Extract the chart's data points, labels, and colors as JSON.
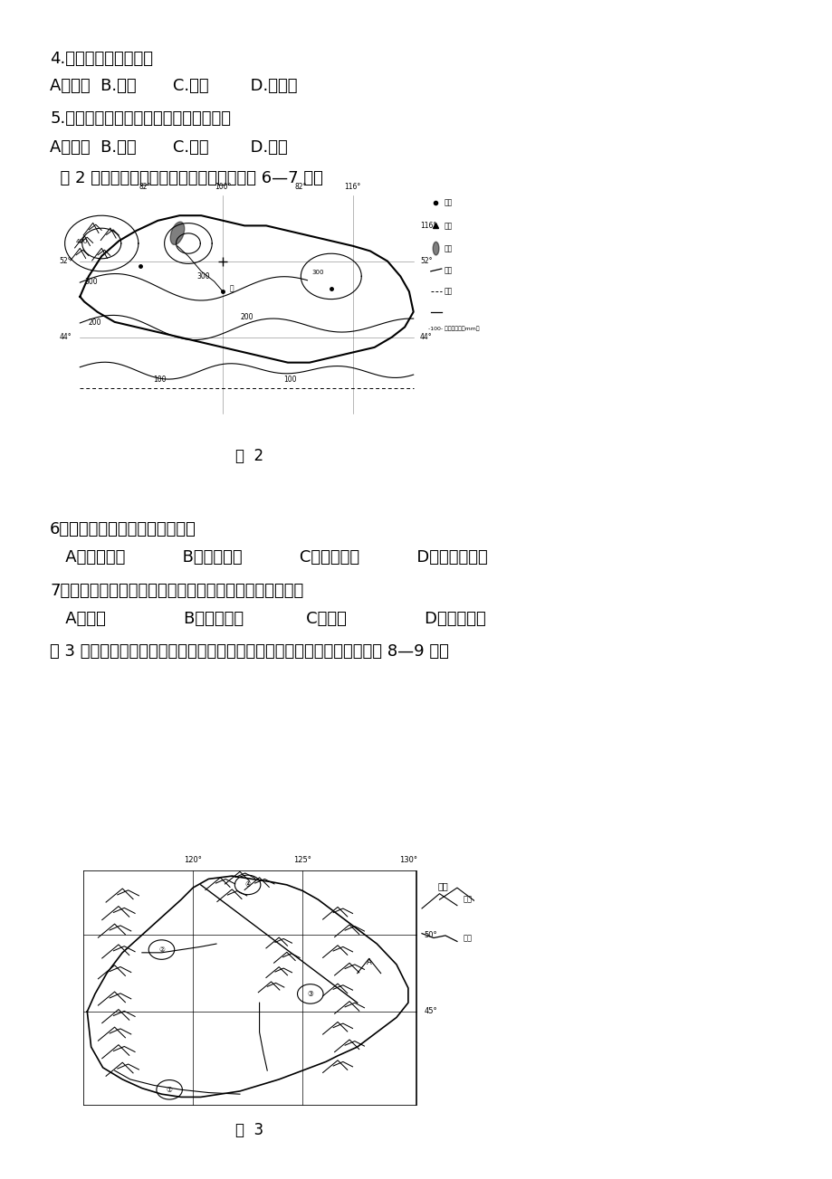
{
  "bg_color": "#ffffff",
  "q4_text": "4.王教授家乡的土壤是",
  "q4_opts": "A．黄土  B.黑土       C.红壤        D.砖红壤",
  "q5_text": "5.下列果树，适合在王教授家乡种植的是",
  "q5_opts": "A．芒果  B.荔枝       C.龙眼        D.柑橘",
  "fig2_intro": "  图 2 为亚洲某国年降水量分布图。读图回答 6—7 题。",
  "fig2_caption": "图  2",
  "q6_text": "6．对该国影响最大的天气系统是",
  "q6_opts": "   A．极地高压           B．蒙古高压           C．印度低压           D．夏威夷高压",
  "q7_text": "7．据图示信息推断，导致该国北部降水较多的主要原因是",
  "q7_opts": "   A．地形               B．距海远近            C．河流               D．植被覆盖",
  "fig3_intro": "图 3 为我国东北地区地形与河流分布简图，图中河流均为外流河。据图回答 8—9 题。",
  "fig3_caption": "图  3"
}
